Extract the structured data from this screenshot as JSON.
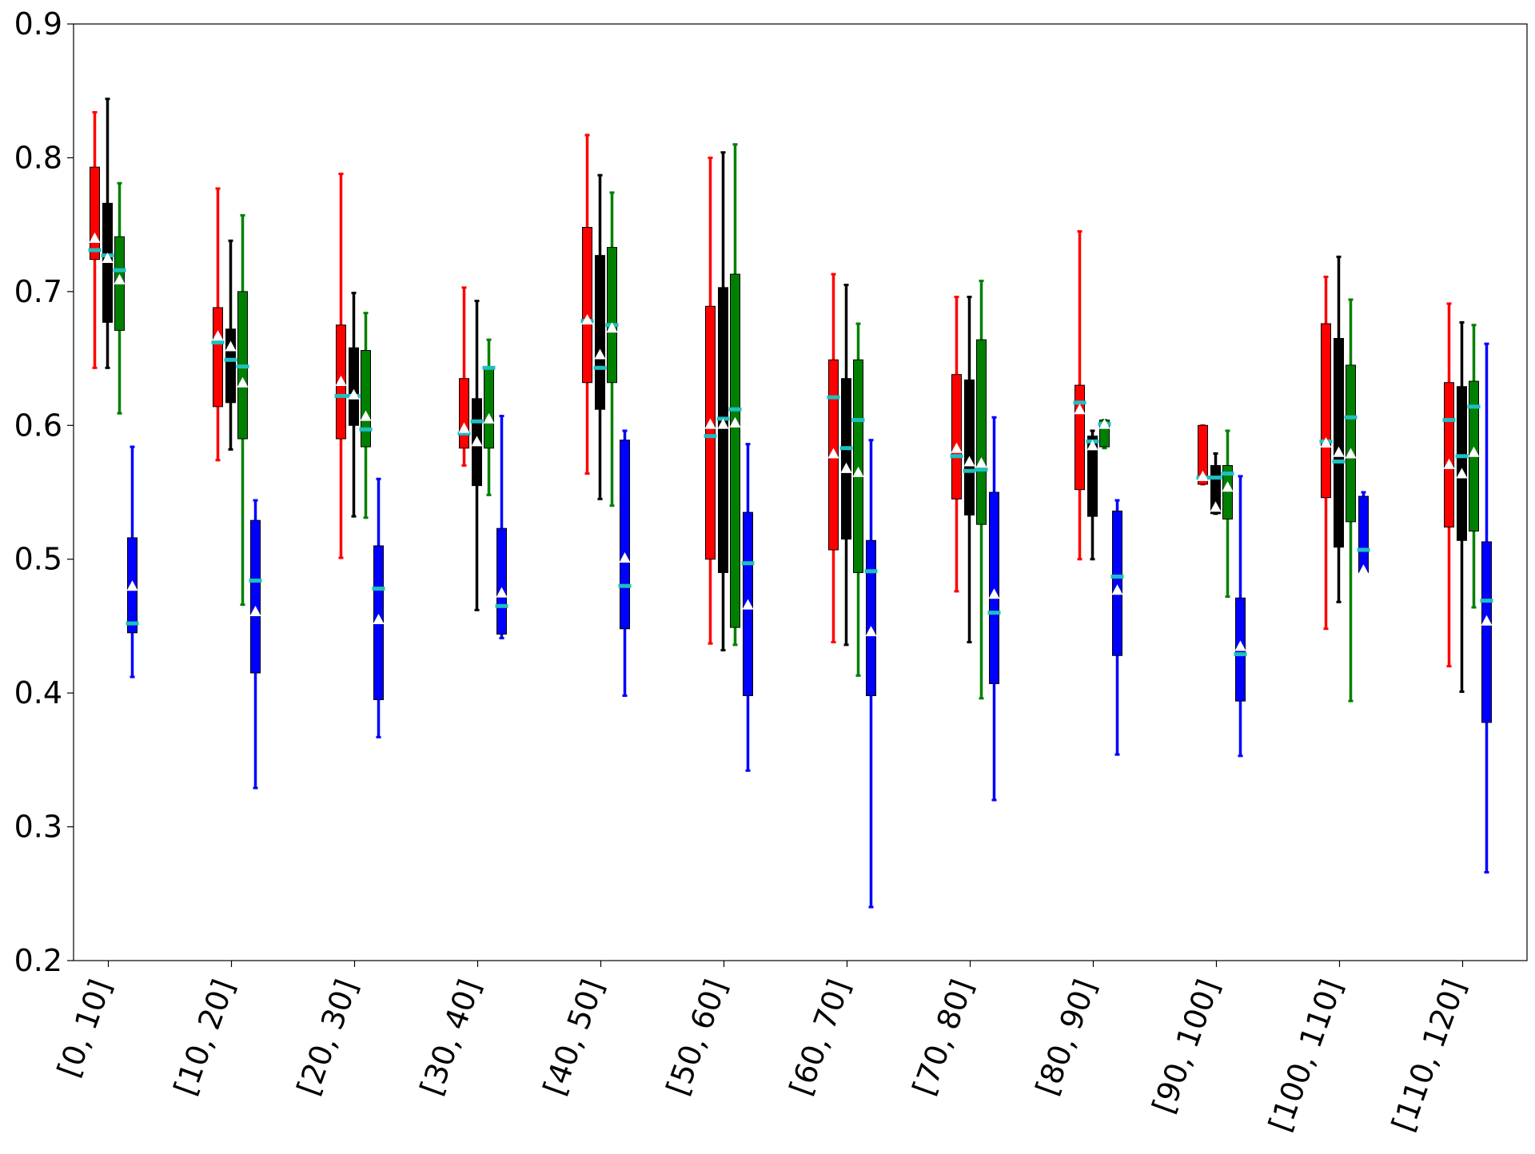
{
  "chart_data": {
    "type": "box",
    "title": "",
    "xlabel": "",
    "ylabel": "",
    "ylim": [
      0.2,
      0.9
    ],
    "yticks": [
      "0.2",
      "0.3",
      "0.4",
      "0.5",
      "0.6",
      "0.7",
      "0.8",
      "0.9"
    ],
    "categories": [
      "[0, 10]",
      "[10, 20]",
      "[20, 30]",
      "[30, 40]",
      "[40, 50]",
      "[50, 60]",
      "[60, 70]",
      "[70, 80]",
      "[80, 90]",
      "[90, 100]",
      "[100, 110]",
      "[110, 120]"
    ],
    "grid": false,
    "legend": "none",
    "colors": {
      "median": "#1fbfbf",
      "mean_marker": "#ffffff"
    },
    "series": [
      {
        "color": "#ff0000",
        "boxes": [
          {
            "whislo": 0.643,
            "q1": 0.724,
            "med": 0.731,
            "q3": 0.793,
            "whishi": 0.834,
            "mean": 0.74
          },
          {
            "whislo": 0.574,
            "q1": 0.614,
            "med": 0.662,
            "q3": 0.688,
            "whishi": 0.777,
            "mean": 0.667
          },
          {
            "whislo": 0.501,
            "q1": 0.59,
            "med": 0.622,
            "q3": 0.675,
            "whishi": 0.788,
            "mean": 0.633
          },
          {
            "whislo": 0.57,
            "q1": 0.583,
            "med": 0.594,
            "q3": 0.635,
            "whishi": 0.703,
            "mean": 0.598
          },
          {
            "whislo": 0.564,
            "q1": 0.632,
            "med": 0.678,
            "q3": 0.748,
            "whishi": 0.817,
            "mean": 0.679
          },
          {
            "whislo": 0.437,
            "q1": 0.5,
            "med": 0.592,
            "q3": 0.689,
            "whishi": 0.8,
            "mean": 0.601
          },
          {
            "whislo": 0.438,
            "q1": 0.507,
            "med": 0.621,
            "q3": 0.649,
            "whishi": 0.713,
            "mean": 0.579
          },
          {
            "whislo": 0.476,
            "q1": 0.545,
            "med": 0.577,
            "q3": 0.638,
            "whishi": 0.696,
            "mean": 0.583
          },
          {
            "whislo": 0.5,
            "q1": 0.552,
            "med": 0.617,
            "q3": 0.63,
            "whishi": 0.745,
            "mean": 0.612
          },
          {
            "whislo": 0.556,
            "q1": 0.556,
            "med": 0.561,
            "q3": 0.6,
            "whishi": 0.6,
            "mean": 0.562
          },
          {
            "whislo": 0.448,
            "q1": 0.546,
            "med": 0.588,
            "q3": 0.676,
            "whishi": 0.711,
            "mean": 0.587
          },
          {
            "whislo": 0.42,
            "q1": 0.524,
            "med": 0.604,
            "q3": 0.632,
            "whishi": 0.691,
            "mean": 0.571
          }
        ]
      },
      {
        "color": "#000000",
        "boxes": [
          {
            "whislo": 0.643,
            "q1": 0.677,
            "med": 0.727,
            "q3": 0.766,
            "whishi": 0.844,
            "mean": 0.725
          },
          {
            "whislo": 0.582,
            "q1": 0.617,
            "med": 0.649,
            "q3": 0.672,
            "whishi": 0.738,
            "mean": 0.659
          },
          {
            "whislo": 0.532,
            "q1": 0.6,
            "med": 0.622,
            "q3": 0.658,
            "whishi": 0.699,
            "mean": 0.623
          },
          {
            "whislo": 0.462,
            "q1": 0.555,
            "med": 0.603,
            "q3": 0.62,
            "whishi": 0.693,
            "mean": 0.588
          },
          {
            "whislo": 0.545,
            "q1": 0.612,
            "med": 0.643,
            "q3": 0.727,
            "whishi": 0.787,
            "mean": 0.653
          },
          {
            "whislo": 0.432,
            "q1": 0.49,
            "med": 0.605,
            "q3": 0.703,
            "whishi": 0.804,
            "mean": 0.601
          },
          {
            "whislo": 0.436,
            "q1": 0.515,
            "med": 0.583,
            "q3": 0.635,
            "whishi": 0.705,
            "mean": 0.568
          },
          {
            "whislo": 0.438,
            "q1": 0.533,
            "med": 0.566,
            "q3": 0.634,
            "whishi": 0.696,
            "mean": 0.573
          },
          {
            "whislo": 0.5,
            "q1": 0.532,
            "med": 0.588,
            "q3": 0.592,
            "whishi": 0.596,
            "mean": 0.585
          },
          {
            "whislo": 0.534,
            "q1": 0.534,
            "med": 0.561,
            "q3": 0.57,
            "whishi": 0.579,
            "mean": 0.539
          },
          {
            "whislo": 0.468,
            "q1": 0.509,
            "med": 0.573,
            "q3": 0.665,
            "whishi": 0.726,
            "mean": 0.58
          },
          {
            "whislo": 0.401,
            "q1": 0.514,
            "med": 0.577,
            "q3": 0.629,
            "whishi": 0.677,
            "mean": 0.564
          }
        ]
      },
      {
        "color": "#008000",
        "boxes": [
          {
            "whislo": 0.609,
            "q1": 0.671,
            "med": 0.716,
            "q3": 0.741,
            "whishi": 0.781,
            "mean": 0.709
          },
          {
            "whislo": 0.466,
            "q1": 0.59,
            "med": 0.644,
            "q3": 0.7,
            "whishi": 0.757,
            "mean": 0.632
          },
          {
            "whislo": 0.531,
            "q1": 0.584,
            "med": 0.597,
            "q3": 0.656,
            "whishi": 0.684,
            "mean": 0.607
          },
          {
            "whislo": 0.548,
            "q1": 0.583,
            "med": 0.643,
            "q3": 0.643,
            "whishi": 0.664,
            "mean": 0.605
          },
          {
            "whislo": 0.54,
            "q1": 0.632,
            "med": 0.675,
            "q3": 0.733,
            "whishi": 0.774,
            "mean": 0.673
          },
          {
            "whislo": 0.436,
            "q1": 0.449,
            "med": 0.612,
            "q3": 0.713,
            "whishi": 0.81,
            "mean": 0.602
          },
          {
            "whislo": 0.413,
            "q1": 0.49,
            "med": 0.604,
            "q3": 0.649,
            "whishi": 0.676,
            "mean": 0.565
          },
          {
            "whislo": 0.396,
            "q1": 0.526,
            "med": 0.567,
            "q3": 0.664,
            "whishi": 0.708,
            "mean": 0.572
          },
          {
            "whislo": 0.583,
            "q1": 0.584,
            "med": 0.601,
            "q3": 0.604,
            "whishi": 0.604,
            "mean": 0.601
          },
          {
            "whislo": 0.472,
            "q1": 0.53,
            "med": 0.564,
            "q3": 0.57,
            "whishi": 0.596,
            "mean": 0.554
          },
          {
            "whislo": 0.394,
            "q1": 0.528,
            "med": 0.606,
            "q3": 0.645,
            "whishi": 0.694,
            "mean": 0.579
          },
          {
            "whislo": 0.464,
            "q1": 0.521,
            "med": 0.614,
            "q3": 0.633,
            "whishi": 0.675,
            "mean": 0.58
          }
        ]
      },
      {
        "color": "#0000ff",
        "boxes": [
          {
            "whislo": 0.412,
            "q1": 0.445,
            "med": 0.452,
            "q3": 0.516,
            "whishi": 0.584,
            "mean": 0.48
          },
          {
            "whislo": 0.329,
            "q1": 0.415,
            "med": 0.484,
            "q3": 0.529,
            "whishi": 0.544,
            "mean": 0.461
          },
          {
            "whislo": 0.367,
            "q1": 0.395,
            "med": 0.478,
            "q3": 0.51,
            "whishi": 0.56,
            "mean": 0.455
          },
          {
            "whislo": 0.441,
            "q1": 0.444,
            "med": 0.465,
            "q3": 0.523,
            "whishi": 0.607,
            "mean": 0.475
          },
          {
            "whislo": 0.398,
            "q1": 0.448,
            "med": 0.48,
            "q3": 0.589,
            "whishi": 0.596,
            "mean": 0.501
          },
          {
            "whislo": 0.342,
            "q1": 0.398,
            "med": 0.497,
            "q3": 0.535,
            "whishi": 0.586,
            "mean": 0.466
          },
          {
            "whislo": 0.24,
            "q1": 0.398,
            "med": 0.491,
            "q3": 0.514,
            "whishi": 0.589,
            "mean": 0.446
          },
          {
            "whislo": 0.32,
            "q1": 0.407,
            "med": 0.46,
            "q3": 0.55,
            "whishi": 0.606,
            "mean": 0.474
          },
          {
            "whislo": 0.354,
            "q1": 0.428,
            "med": 0.487,
            "q3": 0.536,
            "whishi": 0.544,
            "mean": 0.477
          },
          {
            "whislo": 0.353,
            "q1": 0.394,
            "med": 0.429,
            "q3": 0.471,
            "whishi": 0.562,
            "mean": 0.435
          },
          {
            "whislo": 0.49,
            "q1": 0.49,
            "med": 0.507,
            "q3": 0.547,
            "whishi": 0.55,
            "mean": 0.492
          },
          {
            "whislo": 0.266,
            "q1": 0.378,
            "med": 0.469,
            "q3": 0.513,
            "whishi": 0.661,
            "mean": 0.454
          }
        ]
      }
    ]
  }
}
